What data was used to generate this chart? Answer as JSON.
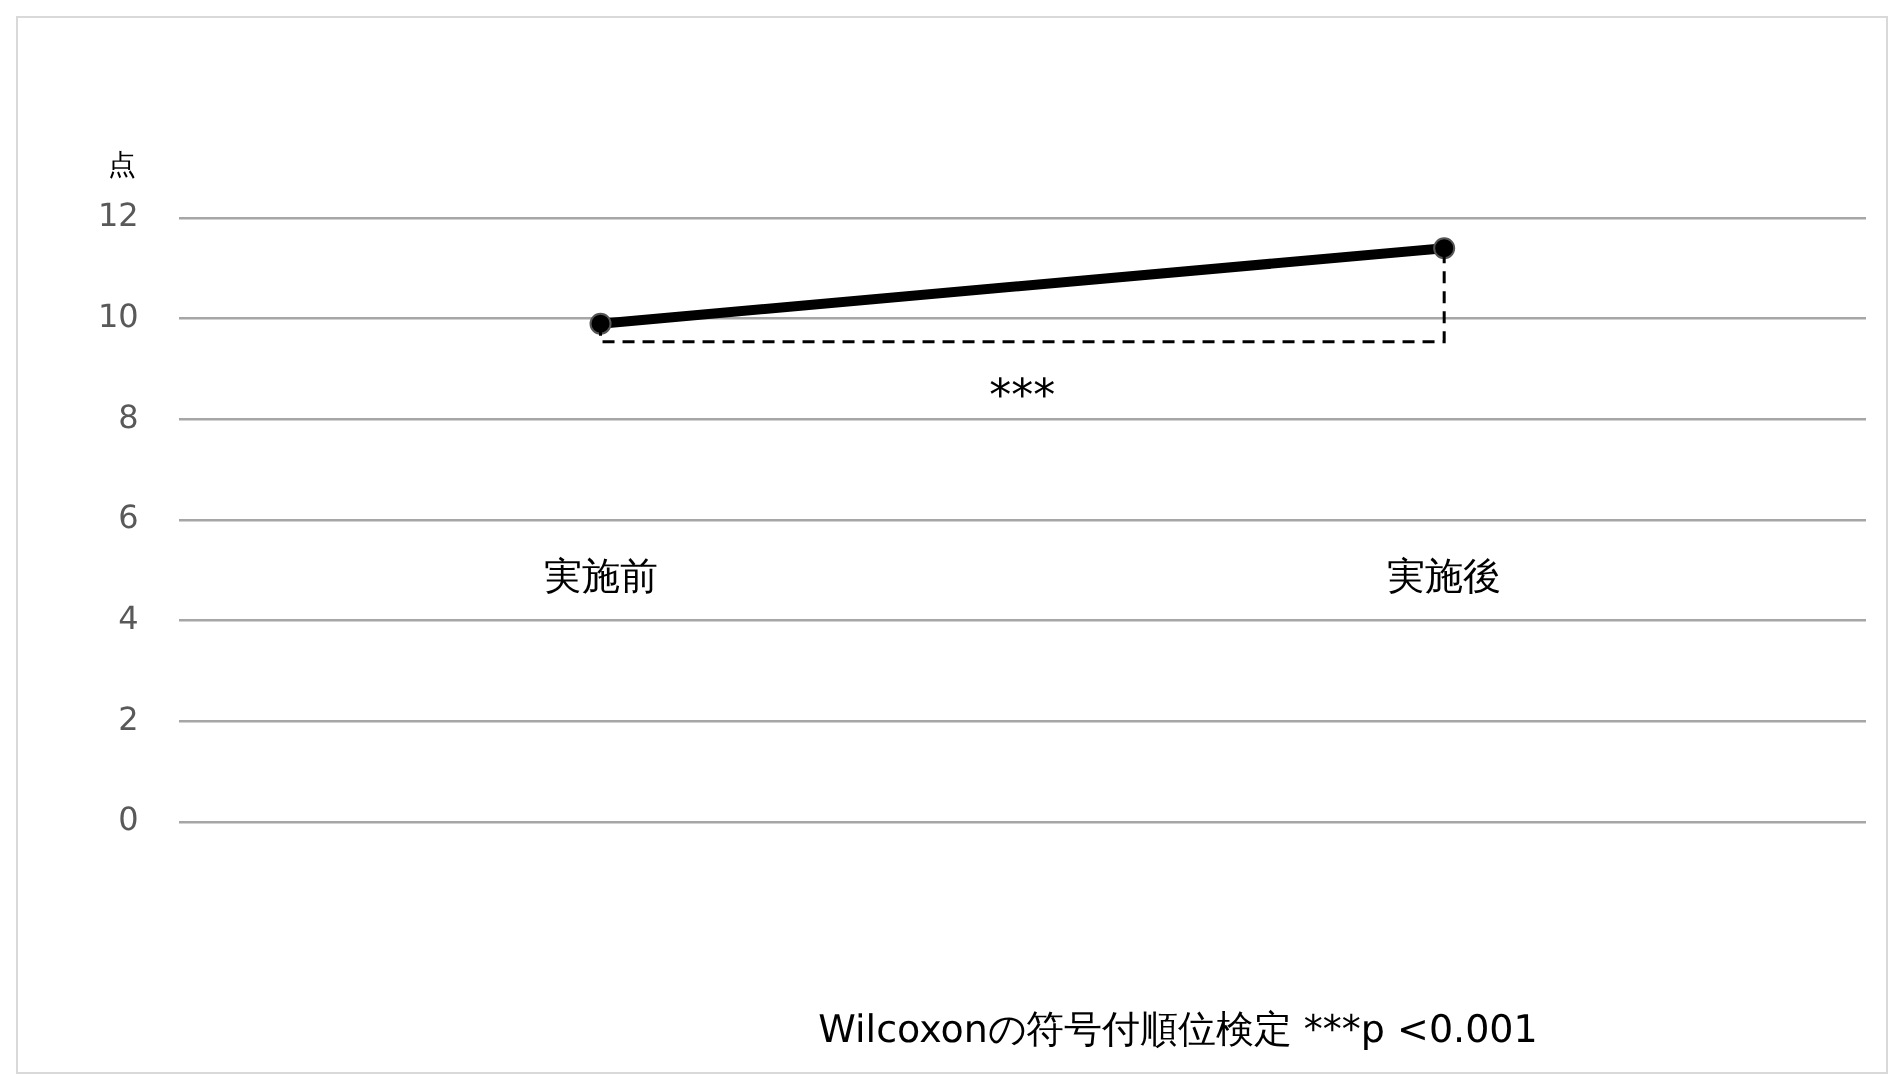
{
  "chart_data": {
    "type": "line",
    "ylabel": "点",
    "categories": [
      "実施前",
      "実施後"
    ],
    "series": [
      {
        "color": "#000000",
        "values": [
          9.9,
          11.4
        ]
      }
    ],
    "ylim": [
      0,
      12
    ],
    "yticks": [
      0,
      2,
      4,
      6,
      8,
      10,
      12
    ],
    "grid": "y",
    "legend": false,
    "marker": "circle",
    "line_style": "solid",
    "annotations": [
      "***",
      "Wilcoxonの符号付順位検定 ***p <0.001"
    ]
  }
}
